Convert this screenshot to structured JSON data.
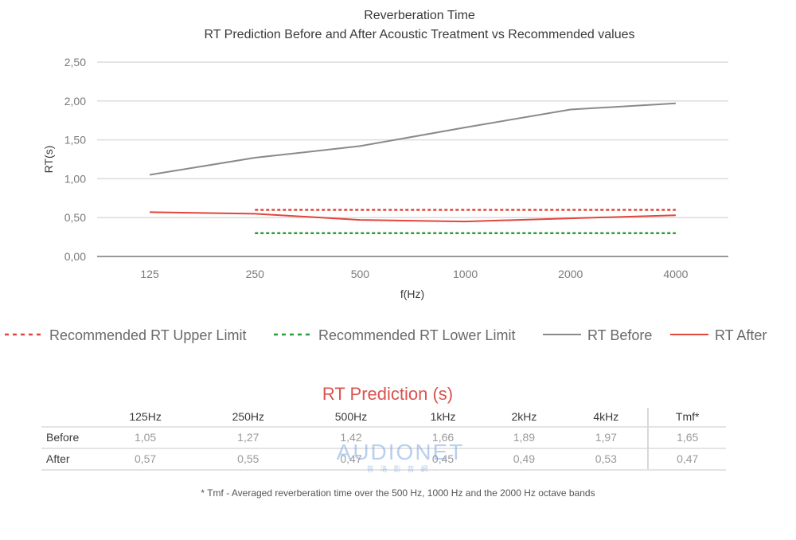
{
  "chart_data": {
    "type": "line",
    "title": "Reverberation Time",
    "subtitle": "RT Prediction Before and After Acoustic Treatment vs Recommended values",
    "xlabel": "f(Hz)",
    "ylabel": "RT(s)",
    "categories": [
      "125",
      "250",
      "500",
      "1000",
      "2000",
      "4000"
    ],
    "ylim": [
      0,
      2.5
    ],
    "yticks": [
      "0,00",
      "0,50",
      "1,00",
      "1,50",
      "2,00",
      "2,50"
    ],
    "ytick_values": [
      0,
      0.5,
      1.0,
      1.5,
      2.0,
      2.5
    ],
    "grid": true,
    "legend_position": "bottom",
    "series": [
      {
        "name": "Recommended RT Upper Limit",
        "style": "dashed",
        "color": "#e0463c",
        "x": [
          "250",
          "500",
          "1000",
          "2000",
          "4000"
        ],
        "values": [
          0.6,
          0.6,
          0.6,
          0.6,
          0.6
        ]
      },
      {
        "name": "Recommended RT Lower Limit",
        "style": "dashed",
        "color": "#2e9b3a",
        "x": [
          "250",
          "500",
          "1000",
          "2000",
          "4000"
        ],
        "values": [
          0.3,
          0.3,
          0.3,
          0.3,
          0.3
        ]
      },
      {
        "name": "RT Before",
        "style": "solid",
        "color": "#8a8a8a",
        "x": [
          "125",
          "250",
          "500",
          "1000",
          "2000",
          "4000"
        ],
        "values": [
          1.05,
          1.27,
          1.42,
          1.66,
          1.89,
          1.97
        ]
      },
      {
        "name": "RT After",
        "style": "solid",
        "color": "#e0463c",
        "x": [
          "125",
          "250",
          "500",
          "1000",
          "2000",
          "4000"
        ],
        "values": [
          0.57,
          0.55,
          0.47,
          0.45,
          0.49,
          0.53
        ]
      }
    ]
  },
  "table": {
    "title": "RT Prediction (s)",
    "headers": [
      "",
      "125Hz",
      "250Hz",
      "500Hz",
      "1kHz",
      "2kHz",
      "4kHz",
      "Tmf*"
    ],
    "rows": [
      {
        "label": "Before",
        "cells": [
          "1,05",
          "1,27",
          "1,42",
          "1,66",
          "1,89",
          "1,97",
          "1,65"
        ]
      },
      {
        "label": "After",
        "cells": [
          "0,57",
          "0,55",
          "0,47",
          "0,45",
          "0,49",
          "0,53",
          "0,47"
        ]
      }
    ]
  },
  "footnote": "* Tmf - Averaged reverberation time over the 500 Hz, 1000 Hz and the 2000 Hz octave bands",
  "watermark": {
    "main": "AUDIONET",
    "sub": "普洛影音網"
  }
}
